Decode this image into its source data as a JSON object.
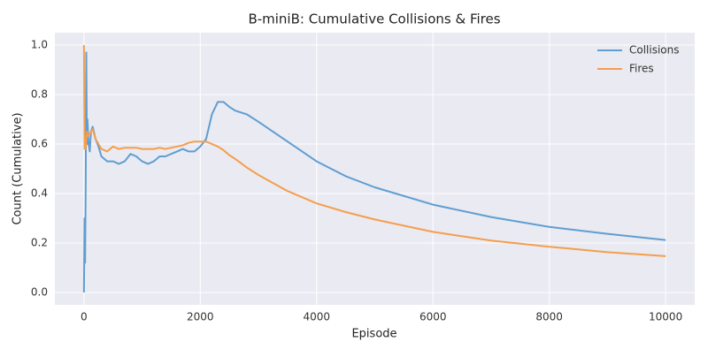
{
  "chart_data": {
    "type": "line",
    "title": "B-miniB: Cumulative Collisions & Fires",
    "x_label": "Episode",
    "y_label": "Count (Cumulative)",
    "x": [
      0,
      10,
      20,
      30,
      40,
      50,
      60,
      80,
      100,
      120,
      150,
      200,
      250,
      300,
      400,
      500,
      600,
      700,
      800,
      900,
      1000,
      1100,
      1200,
      1300,
      1400,
      1500,
      1600,
      1700,
      1800,
      1900,
      2000,
      2100,
      2200,
      2300,
      2400,
      2500,
      2600,
      2800,
      3000,
      3500,
      4000,
      4500,
      5000,
      6000,
      7000,
      8000,
      9000,
      10000
    ],
    "series": [
      {
        "name": "Collisions",
        "color": "#5f9ed1",
        "values": [
          0,
          0.3,
          0.12,
          0.44,
          0.97,
          0.6,
          0.7,
          0.6,
          0.57,
          0.65,
          0.67,
          0.62,
          0.59,
          0.55,
          0.53,
          0.53,
          0.52,
          0.53,
          0.56,
          0.55,
          0.53,
          0.52,
          0.53,
          0.55,
          0.55,
          0.56,
          0.57,
          0.58,
          0.57,
          0.57,
          0.59,
          0.62,
          0.72,
          0.77,
          0.77,
          0.75,
          0.735,
          0.72,
          0.69,
          0.61,
          0.53,
          0.47,
          0.425,
          0.355,
          0.305,
          0.265,
          0.237,
          0.212
        ]
      },
      {
        "name": "Fires",
        "color": "#f59e4c",
        "values": [
          1.0,
          0.58,
          0.6,
          0.58,
          0.62,
          0.65,
          0.63,
          0.64,
          0.64,
          0.65,
          0.66,
          0.62,
          0.6,
          0.58,
          0.57,
          0.59,
          0.58,
          0.585,
          0.585,
          0.585,
          0.58,
          0.58,
          0.58,
          0.585,
          0.58,
          0.585,
          0.59,
          0.595,
          0.605,
          0.61,
          0.61,
          0.61,
          0.6,
          0.59,
          0.575,
          0.555,
          0.54,
          0.505,
          0.475,
          0.41,
          0.36,
          0.325,
          0.295,
          0.245,
          0.21,
          0.185,
          0.163,
          0.147
        ]
      }
    ],
    "xlim": [
      -500,
      10500
    ],
    "ylim": [
      -0.05,
      1.05
    ],
    "xticks": [
      0,
      2000,
      4000,
      6000,
      8000,
      10000
    ],
    "yticks": [
      {
        "value": 0,
        "label": "0.0"
      },
      0.2,
      0.4,
      0.6,
      0.8,
      {
        "value": 1,
        "label": "1.0"
      }
    ],
    "grid": true,
    "legend": "upper right"
  }
}
